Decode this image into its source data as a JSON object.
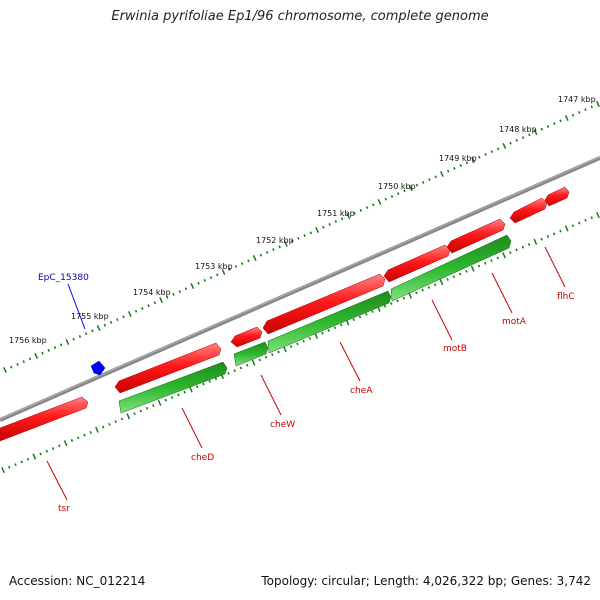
{
  "title": "Erwinia pyrifoliae Ep1/96 chromosome, complete genome",
  "footer": {
    "accession": "Accession: NC_012214",
    "summary": "Topology: circular; Length: 4,026,322 bp; Genes: 3,742"
  },
  "ticks": [
    {
      "label": "1747 kbp",
      "kbp": 1747
    },
    {
      "label": "1748 kbp",
      "kbp": 1748
    },
    {
      "label": "1749 kbp",
      "kbp": 1749
    },
    {
      "label": "1750 kbp",
      "kbp": 1750
    },
    {
      "label": "1751 kbp",
      "kbp": 1751
    },
    {
      "label": "1752 kbp",
      "kbp": 1752
    },
    {
      "label": "1753 kbp",
      "kbp": 1753
    },
    {
      "label": "1754 kbp",
      "kbp": 1754
    },
    {
      "label": "1755 kbp",
      "kbp": 1755
    },
    {
      "label": "1756 kbp",
      "kbp": 1756
    }
  ],
  "genes": [
    {
      "name": "flhC",
      "color": "#ff0000"
    },
    {
      "name": "motA",
      "color": "#ff0000"
    },
    {
      "name": "motB",
      "color": "#ff0000"
    },
    {
      "name": "cheA",
      "color": "#ff0000"
    },
    {
      "name": "cheW",
      "color": "#ff0000"
    },
    {
      "name": "cheD",
      "color": "#ff0000"
    },
    {
      "name": "tsr",
      "color": "#ff0000"
    }
  ],
  "feature": {
    "name": "EpC_15380",
    "color": "#0000ff"
  },
  "colors": {
    "cds": "#ff0000",
    "gene": "#22aa22",
    "backbone": "#808080",
    "ticks": "#1a7a1a",
    "label": "#cc0000"
  }
}
